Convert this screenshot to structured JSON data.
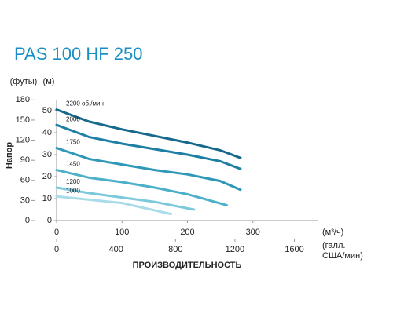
{
  "chart_data": {
    "type": "line",
    "title": "PAS 100 HF 250",
    "y_label": "Напор",
    "x_label": "ПРОИЗВОДИТЕЛЬНОСТЬ",
    "y_unit": "(м)",
    "y2_unit": "(футы)",
    "x_unit": "(м³/ч)",
    "x2_unit": [
      "(галл.",
      "США/мин)"
    ],
    "xlim": [
      0,
      400
    ],
    "xticks": [
      0,
      100,
      200,
      300
    ],
    "x2lim": [
      0,
      1761
    ],
    "x2ticks": [
      0,
      400,
      800,
      1200,
      1600
    ],
    "ylim": [
      0,
      55
    ],
    "yticks": [
      0,
      10,
      20,
      30,
      40,
      50
    ],
    "y2lim": [
      0,
      180.4
    ],
    "y2ticks": [
      0,
      30,
      60,
      90,
      120,
      150,
      180
    ],
    "series": [
      {
        "name": "2200 об./мин",
        "color": "#17698c",
        "x": [
          0,
          50,
          100,
          150,
          200,
          250,
          281
        ],
        "values": [
          50.5,
          45,
          41.5,
          38.5,
          35.5,
          32,
          28.5
        ]
      },
      {
        "name": "2000",
        "color": "#1d7fa3",
        "x": [
          0,
          50,
          100,
          150,
          200,
          250,
          281
        ],
        "values": [
          43.5,
          38,
          35,
          32.5,
          30,
          27,
          23.5
        ]
      },
      {
        "name": "1750",
        "color": "#2f98b8",
        "x": [
          0,
          50,
          100,
          150,
          200,
          250,
          281
        ],
        "values": [
          33,
          28,
          25.5,
          23,
          21,
          18,
          14
        ]
      },
      {
        "name": "1450",
        "color": "#4cb0c9",
        "x": [
          0,
          50,
          100,
          150,
          200,
          260
        ],
        "values": [
          23,
          19.5,
          17.5,
          15,
          12,
          7
        ]
      },
      {
        "name": "1200",
        "color": "#7dc9dc",
        "x": [
          0,
          50,
          100,
          150,
          210
        ],
        "values": [
          15,
          12.5,
          10.5,
          8.5,
          5
        ]
      },
      {
        "name": "1000",
        "color": "#a9dbe8",
        "x": [
          0,
          50,
          100,
          175
        ],
        "values": [
          11,
          9.5,
          8,
          3
        ]
      }
    ]
  }
}
